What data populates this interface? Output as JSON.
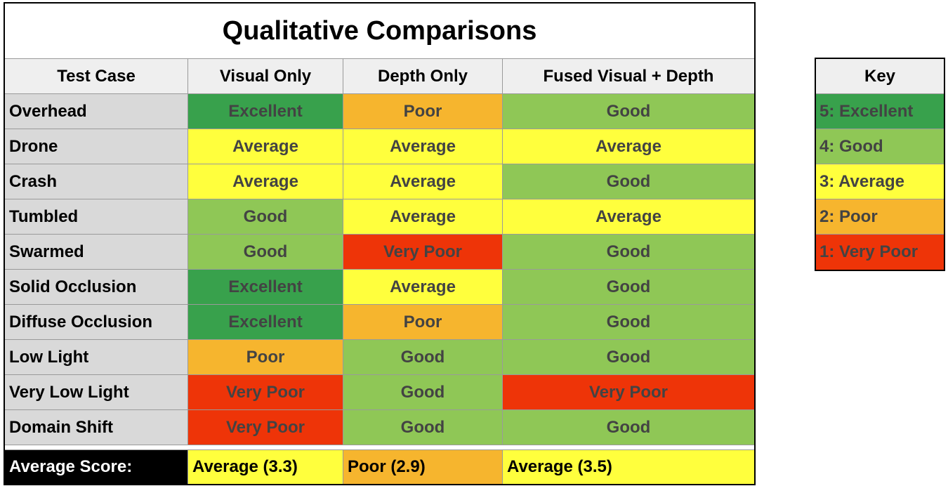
{
  "title": "Qualitative Comparisons",
  "columns": [
    "Test Case",
    "Visual Only",
    "Depth Only",
    "Fused Visual + Depth"
  ],
  "rating_colors": {
    "Excellent": "#38a14c",
    "Good": "#8fc756",
    "Average": "#ffff3d",
    "Poor": "#f6b52e",
    "Very Poor": "#ee3408"
  },
  "rows": [
    {
      "case": "Overhead",
      "visual": "Excellent",
      "depth": "Poor",
      "fused": "Good"
    },
    {
      "case": "Drone",
      "visual": "Average",
      "depth": "Average",
      "fused": "Average"
    },
    {
      "case": "Crash",
      "visual": "Average",
      "depth": "Average",
      "fused": "Good"
    },
    {
      "case": "Tumbled",
      "visual": "Good",
      "depth": "Average",
      "fused": "Average"
    },
    {
      "case": "Swarmed",
      "visual": "Good",
      "depth": "Very Poor",
      "fused": "Good"
    },
    {
      "case": "Solid Occlusion",
      "visual": "Excellent",
      "depth": "Average",
      "fused": "Good"
    },
    {
      "case": "Diffuse Occlusion",
      "visual": "Excellent",
      "depth": "Poor",
      "fused": "Good"
    },
    {
      "case": "Low Light",
      "visual": "Poor",
      "depth": "Good",
      "fused": "Good"
    },
    {
      "case": "Very Low Light",
      "visual": "Very Poor",
      "depth": "Good",
      "fused": "Very Poor"
    },
    {
      "case": "Domain Shift",
      "visual": "Very Poor",
      "depth": "Good",
      "fused": "Good"
    }
  ],
  "average": {
    "label": "Average Score:",
    "visual": "Average (3.3)",
    "depth": "Poor (2.9)",
    "fused": "Average (3.5)"
  },
  "key": {
    "title": "Key",
    "items": [
      "5: Excellent",
      "4: Good",
      "3: Average",
      "2: Poor",
      "1: Very Poor"
    ]
  }
}
